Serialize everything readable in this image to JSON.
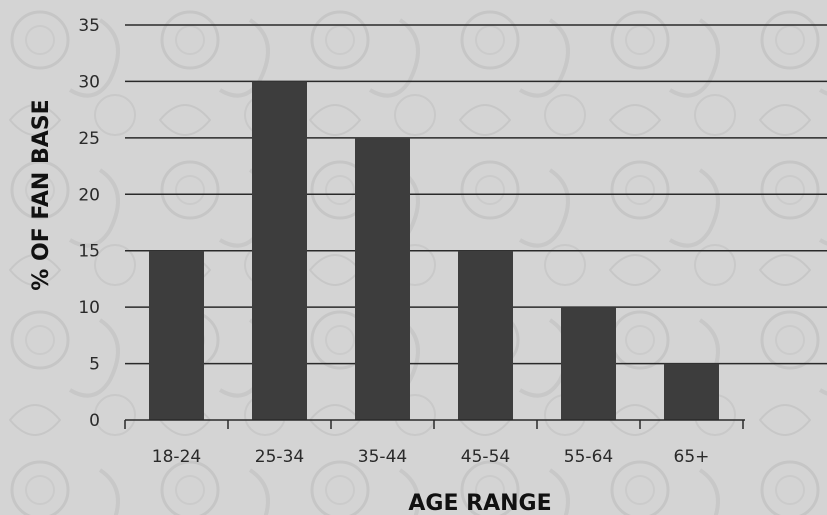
{
  "chart_data": {
    "type": "bar",
    "categories": [
      "18-24",
      "25-34",
      "35-44",
      "45-54",
      "55-64",
      "65+"
    ],
    "values": [
      15,
      30,
      25,
      15,
      10,
      5
    ],
    "xlabel": "AGE RANGE",
    "ylabel": "% OF FAN BASE",
    "ylim": [
      0,
      35
    ],
    "yticks": [
      0,
      5,
      10,
      15,
      20,
      25,
      30,
      35
    ],
    "grid": true,
    "colors": {
      "bar": "#3d3d3d",
      "background": "#d4d4d4",
      "grid": "#2a2a2a",
      "text": "#2a2a2a"
    }
  }
}
